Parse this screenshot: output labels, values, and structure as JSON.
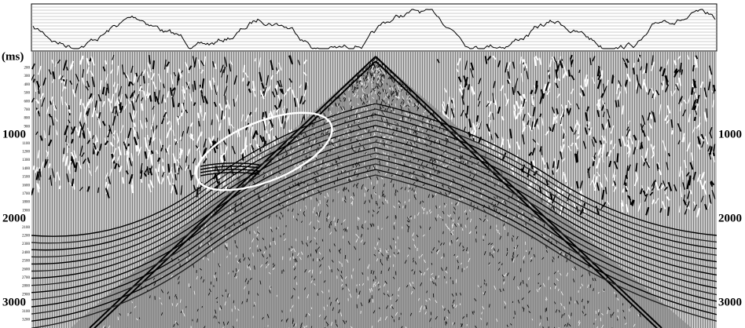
{
  "time_axis": {
    "unit_label": "(ms)",
    "major_labels": [
      "1000",
      "2000",
      "3000"
    ],
    "minor_labels": [
      "200",
      "300",
      "400",
      "500",
      "600",
      "700",
      "800",
      "900",
      "1100",
      "1200",
      "1300",
      "1400",
      "1500",
      "1600",
      "1700",
      "1800",
      "1900",
      "2100",
      "2200",
      "2300",
      "2400",
      "2500",
      "2600",
      "2700",
      "2800",
      "2900",
      "3100",
      "3200"
    ]
  }
}
